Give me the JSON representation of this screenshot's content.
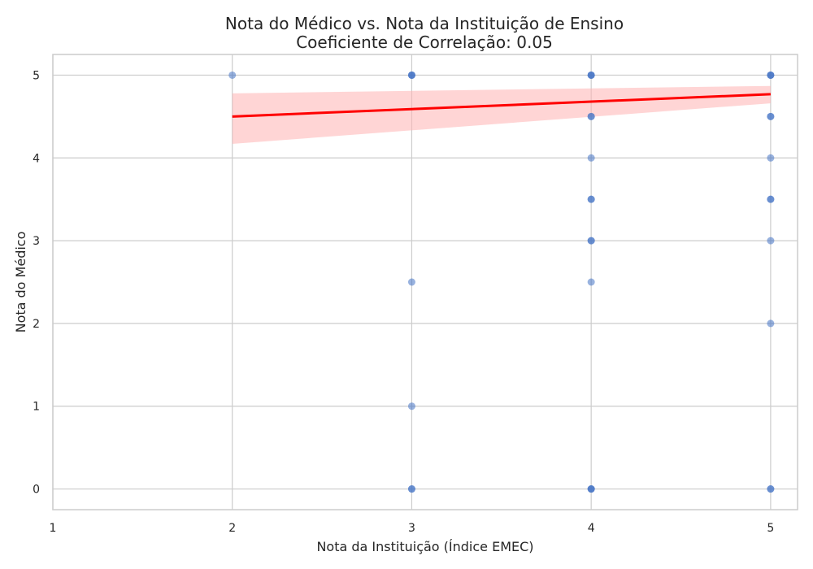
{
  "chart_data": {
    "type": "scatter",
    "title_line1": "Nota do Médico vs. Nota da Instituição de Ensino",
    "title_line2": "Coeficiente de Correlação: 0.05",
    "xlabel": "Nota da Instituição (Índice EMEC)",
    "ylabel": "Nota do Médico",
    "xlim": [
      1,
      5.15
    ],
    "ylim": [
      -0.25,
      5.25
    ],
    "x_ticks": [
      1,
      2,
      3,
      4,
      5
    ],
    "y_ticks": [
      0,
      1,
      2,
      3,
      4,
      5
    ],
    "grid": true,
    "points": [
      {
        "x": 2,
        "y": 5
      },
      {
        "x": 3,
        "y": 5
      },
      {
        "x": 3,
        "y": 5
      },
      {
        "x": 3,
        "y": 5
      },
      {
        "x": 3,
        "y": 2.5
      },
      {
        "x": 3,
        "y": 1
      },
      {
        "x": 3,
        "y": 0
      },
      {
        "x": 3,
        "y": 0
      },
      {
        "x": 4,
        "y": 5
      },
      {
        "x": 4,
        "y": 5
      },
      {
        "x": 4,
        "y": 5
      },
      {
        "x": 4,
        "y": 4.5
      },
      {
        "x": 4,
        "y": 4.5
      },
      {
        "x": 4,
        "y": 4
      },
      {
        "x": 4,
        "y": 3.5
      },
      {
        "x": 4,
        "y": 3.5
      },
      {
        "x": 4,
        "y": 3
      },
      {
        "x": 4,
        "y": 3
      },
      {
        "x": 4,
        "y": 2.5
      },
      {
        "x": 4,
        "y": 0
      },
      {
        "x": 4,
        "y": 0
      },
      {
        "x": 4,
        "y": 0
      },
      {
        "x": 5,
        "y": 5
      },
      {
        "x": 5,
        "y": 5
      },
      {
        "x": 5,
        "y": 5
      },
      {
        "x": 5,
        "y": 4.5
      },
      {
        "x": 5,
        "y": 4.5
      },
      {
        "x": 5,
        "y": 4
      },
      {
        "x": 5,
        "y": 3.5
      },
      {
        "x": 5,
        "y": 3.5
      },
      {
        "x": 5,
        "y": 3
      },
      {
        "x": 5,
        "y": 2
      },
      {
        "x": 5,
        "y": 0
      },
      {
        "x": 5,
        "y": 0
      }
    ],
    "regression": {
      "x": [
        2,
        5
      ],
      "y": [
        4.5,
        4.77
      ],
      "ci_lower": [
        4.17,
        4.66
      ],
      "ci_upper": [
        4.78,
        4.87
      ]
    },
    "colors": {
      "points": "#4472c4",
      "regression_line": "#ff0000",
      "confidence_band": "#ffb3b3",
      "grid": "#cccccc"
    }
  }
}
